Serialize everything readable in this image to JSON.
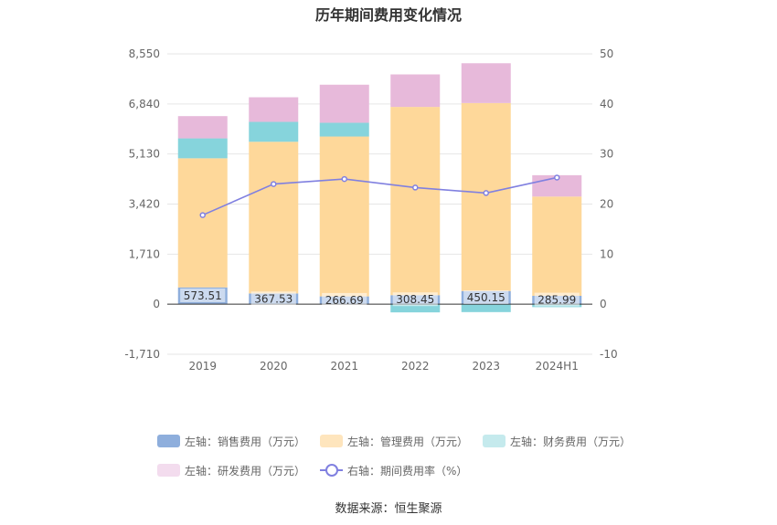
{
  "title": "历年期间费用变化情况",
  "source": "数据来源：恒生聚源",
  "colors": {
    "sales": "#8eaedc",
    "mgmt": "#fed89a",
    "finance": "#86d4dc",
    "rd": "#e7b9da",
    "rate_line": "#8080e0"
  },
  "legend": [
    {
      "label": "左轴：销售费用（万元）",
      "color": "#8eaedc",
      "kind": "bar"
    },
    {
      "label": "左轴：管理费用（万元）",
      "color": "#fee5bd",
      "kind": "bar"
    },
    {
      "label": "左轴：财务费用（万元）",
      "color": "#c5eaed",
      "kind": "bar"
    },
    {
      "label": "左轴：研发费用（万元）",
      "color": "#f3dcee",
      "kind": "bar"
    },
    {
      "label": "右轴：期间费用率（%）",
      "color": "#8080e0",
      "kind": "line"
    }
  ],
  "chart_data": {
    "type": "bar",
    "stacked": true,
    "categories": [
      "2019",
      "2020",
      "2021",
      "2022",
      "2023",
      "2024H1"
    ],
    "left_axis": {
      "ylim": [
        -1710,
        8550
      ],
      "ticks": [
        "-1,710",
        "0",
        "1,710",
        "3,420",
        "5,130",
        "6,840",
        "8,550"
      ],
      "tick_values": [
        -1710,
        0,
        1710,
        3420,
        5130,
        6840,
        8550
      ]
    },
    "right_axis": {
      "ylim": [
        -10,
        50
      ],
      "ticks": [
        "-10",
        "0",
        "10",
        "20",
        "30",
        "40",
        "50"
      ],
      "tick_values": [
        -10,
        0,
        10,
        20,
        30,
        40,
        50
      ]
    },
    "series": [
      {
        "name": "左轴：销售费用（万元）",
        "axis": "left",
        "values": [
          573.51,
          367.53,
          266.69,
          308.45,
          450.15,
          285.99
        ],
        "labels": [
          "573.51",
          "367.53",
          "266.69",
          "308.45",
          "450.15",
          "285.99"
        ]
      },
      {
        "name": "左轴：管理费用（万元）",
        "axis": "left",
        "values": [
          4410,
          5180,
          5460,
          6430,
          6420,
          3390
        ]
      },
      {
        "name": "左轴：财务费用（万元）",
        "axis": "left",
        "values": [
          680,
          680,
          470,
          -280,
          -270,
          -100
        ]
      },
      {
        "name": "左轴：研发费用（万元）",
        "axis": "left",
        "values": [
          760,
          840,
          1300,
          1110,
          1360,
          730
        ]
      },
      {
        "name": "右轴：期间费用率（%）",
        "axis": "right",
        "type": "line",
        "values": [
          17.8,
          24.0,
          25.0,
          23.3,
          22.2,
          25.3
        ]
      }
    ],
    "grid": true,
    "legend_position": "bottom"
  }
}
